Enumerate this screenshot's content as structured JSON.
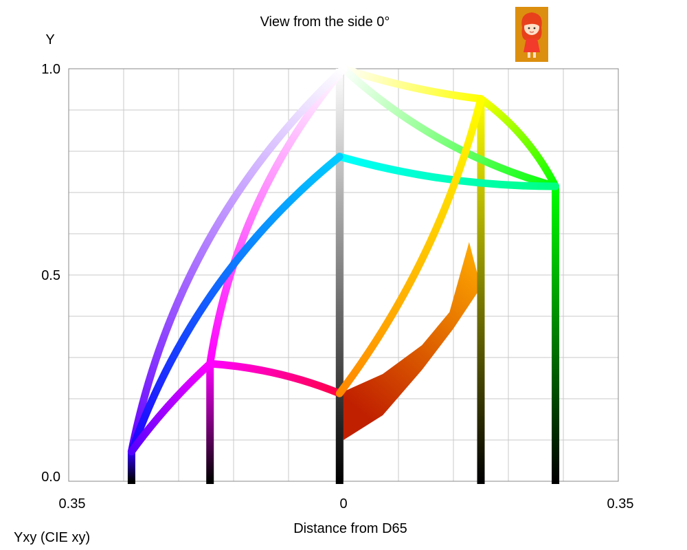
{
  "chart_data": {
    "type": "line",
    "title": "View from the side 0°",
    "ylabel": "Y",
    "xlabel": "Distance from D65",
    "corner_label": "Yxy (CIE xy)",
    "x_ticks": [
      "0.35",
      "0",
      "0.35"
    ],
    "y_ticks": [
      "1.0",
      "0.5",
      "0.0"
    ],
    "xlim": [
      -0.35,
      0.35
    ],
    "ylim": [
      0,
      1
    ],
    "grid": true,
    "corners": {
      "white": [
        0,
        1.0
      ],
      "yellow": [
        0.175,
        0.927
      ],
      "green": [
        0.27,
        0.715
      ],
      "cyan": [
        -0.005,
        0.787
      ],
      "magenta": [
        -0.17,
        0.285
      ],
      "blue": [
        -0.27,
        0.072
      ],
      "red": [
        -0.005,
        0.213
      ]
    },
    "edges": [
      {
        "from": "white",
        "to": "yellow",
        "c1": "#ffffff",
        "c2": "#ffff00",
        "bend": 0.05
      },
      {
        "from": "yellow",
        "to": "green",
        "c1": "#ffff00",
        "c2": "#00ff00",
        "bend": -0.12
      },
      {
        "from": "white",
        "to": "green",
        "c1": "#ffffff",
        "c2": "#00ff00",
        "bend": 0.12
      },
      {
        "from": "cyan",
        "to": "green",
        "c1": "#00ffff",
        "c2": "#00ff80",
        "bend": 0.07
      },
      {
        "from": "white",
        "to": "magenta",
        "c1": "#ffffff",
        "c2": "#ff00ff",
        "bend": 0.14
      },
      {
        "from": "white",
        "to": "blue",
        "c1": "#ffffff",
        "c2": "#6600ff",
        "bend": 0.16
      },
      {
        "from": "cyan",
        "to": "blue",
        "c1": "#00ccff",
        "c2": "#2200ff",
        "bend": 0.14
      },
      {
        "from": "magenta",
        "to": "red",
        "c1": "#ff00ff",
        "c2": "#ff0044",
        "bend": -0.08
      },
      {
        "from": "magenta",
        "to": "blue",
        "c1": "#ff00ff",
        "c2": "#5500ff",
        "bend": 0.05
      },
      {
        "from": "yellow",
        "to": "red",
        "c1": "#ffff00",
        "c2": "#ff8800",
        "bend": -0.1
      }
    ],
    "verticals": [
      {
        "x": -0.005,
        "ytop": 1.0,
        "c1": "#ffffff",
        "c2": "#000000"
      },
      {
        "x": 0.175,
        "ytop": 0.927,
        "c1": "#ffff00",
        "c2": "#000000"
      },
      {
        "x": 0.27,
        "ytop": 0.715,
        "c1": "#00ff00",
        "c2": "#000000"
      },
      {
        "x": -0.17,
        "ytop": 0.285,
        "c1": "#ff00ff",
        "c2": "#000000"
      },
      {
        "x": -0.27,
        "ytop": 0.072,
        "c1": "#3300ff",
        "c2": "#000000"
      }
    ],
    "fill_region": {
      "upper": [
        [
          -0.005,
          0.213
        ],
        [
          0.05,
          0.26
        ],
        [
          0.1,
          0.33
        ],
        [
          0.135,
          0.41
        ],
        [
          0.16,
          0.58
        ]
      ],
      "lower": [
        [
          0.175,
          0.47
        ],
        [
          0.14,
          0.37
        ],
        [
          0.1,
          0.27
        ],
        [
          0.05,
          0.16
        ],
        [
          0.0,
          0.1
        ]
      ],
      "c1": "#c02000",
      "c2": "#ffaa00"
    }
  },
  "icons": {
    "avatar": "girl-avatar-icon"
  }
}
